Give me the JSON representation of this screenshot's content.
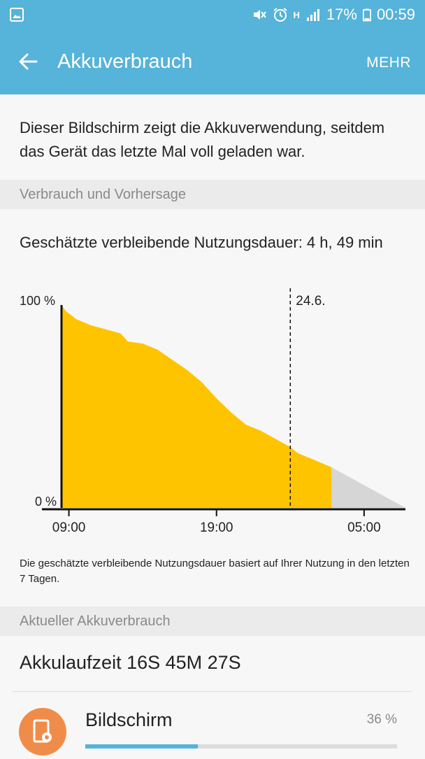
{
  "status_bar": {
    "battery_percent": "17%",
    "time": "00:59",
    "network": "H",
    "icons": [
      "gallery-icon",
      "mute-icon",
      "alarm-icon",
      "signal-icon",
      "battery-icon"
    ]
  },
  "app_bar": {
    "title": "Akkuverbrauch",
    "more_label": "MEHR"
  },
  "intro_text": "Dieser Bildschirm zeigt die Akkuverwendung, seitdem das Gerät das letzte Mal voll geladen war.",
  "section_usage": "Verbrauch und Vorhersage",
  "estimate_text": "Geschätzte verbleibende Nutzungsdauer: 4 h, 49 min",
  "chart_data": {
    "type": "area",
    "y_labels": [
      "100 %",
      "0 %"
    ],
    "x_ticks": [
      "09:00",
      "19:00",
      "05:00"
    ],
    "date_marker": "24.6.",
    "ylim": [
      0,
      100
    ],
    "actual": [
      [
        8.5,
        100
      ],
      [
        8.8,
        97
      ],
      [
        9.5,
        93
      ],
      [
        10.5,
        90
      ],
      [
        11.5,
        88
      ],
      [
        12.5,
        86
      ],
      [
        13.0,
        82
      ],
      [
        14.0,
        81
      ],
      [
        15.0,
        78
      ],
      [
        16.0,
        73
      ],
      [
        17.0,
        68
      ],
      [
        18.0,
        62
      ],
      [
        19.0,
        54
      ],
      [
        20.0,
        47
      ],
      [
        21.0,
        41
      ],
      [
        22.0,
        38
      ],
      [
        23.0,
        34
      ],
      [
        24.0,
        30
      ],
      [
        24.5,
        27
      ],
      [
        25.5,
        24
      ],
      [
        26.8,
        20
      ]
    ],
    "forecast": [
      [
        26.8,
        20
      ],
      [
        31.8,
        0
      ]
    ],
    "colors": {
      "actual": "#ffc400",
      "forecast": "#d6d6d6",
      "axis": "#111111"
    }
  },
  "footnote": "Die geschätzte verbleibende Nutzungsdauer basiert auf Ihrer Nutzung in den letzten 7 Tagen.",
  "section_current": "Aktueller Akkuverbrauch",
  "uptime": "Akkulaufzeit 16S 45M 27S",
  "apps": [
    {
      "name": "Bildschirm",
      "percent_label": "36 %",
      "percent": 36,
      "icon": "display-settings-icon"
    }
  ]
}
